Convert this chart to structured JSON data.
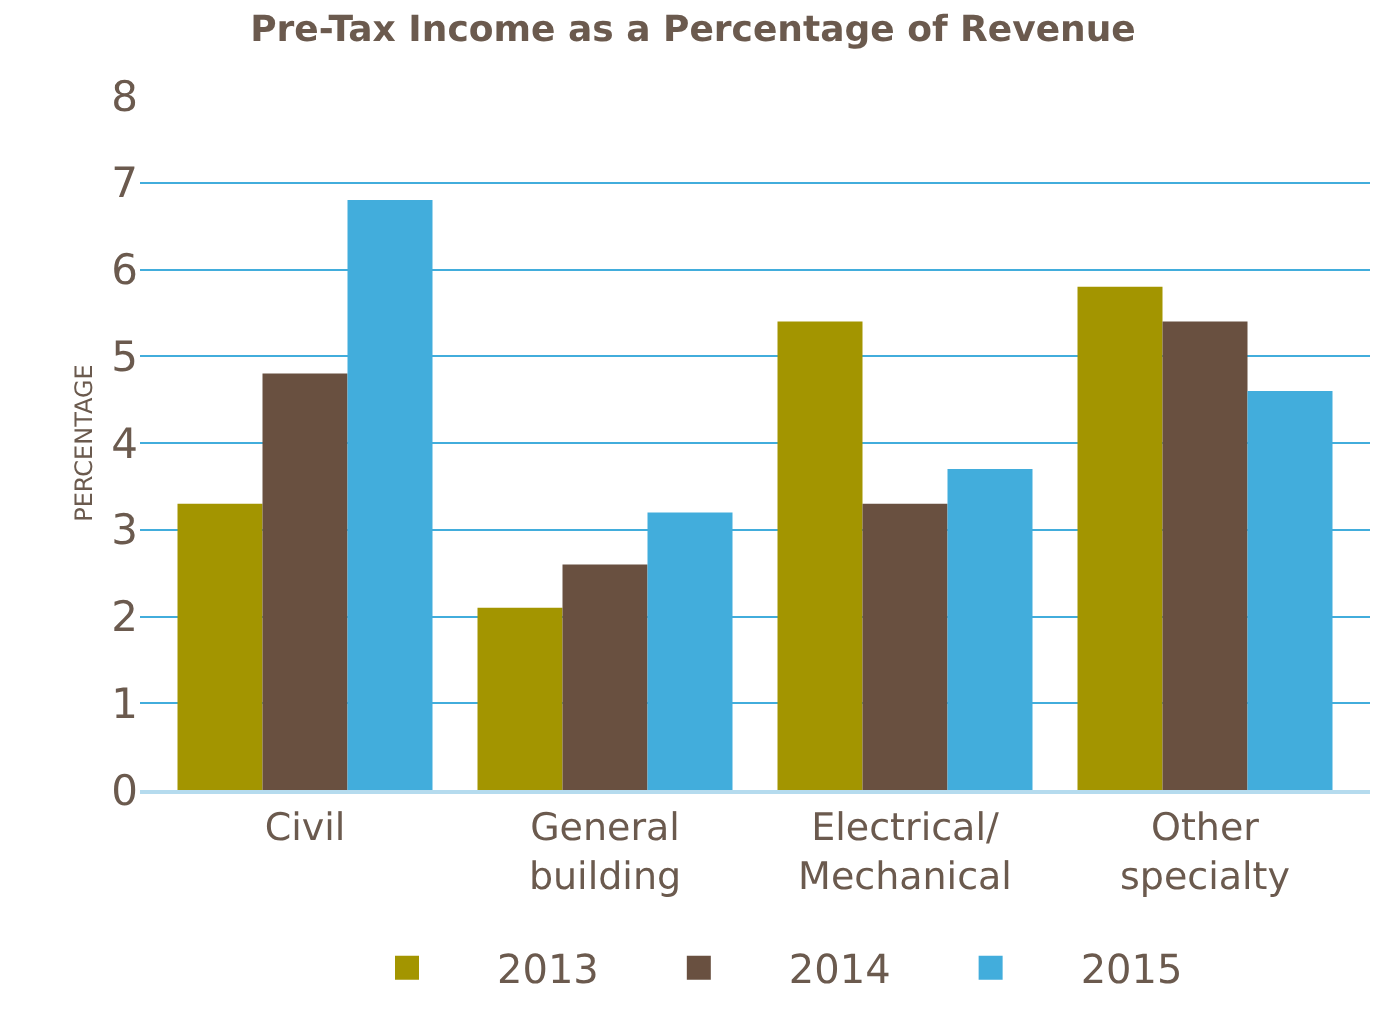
{
  "chart_data": {
    "type": "bar",
    "title": "Pre-Tax Income as a Percentage of Revenue",
    "ylabel": "PERCENTAGE",
    "categories": [
      "Civil",
      "General\nbuilding",
      "Electrical/\nMechanical",
      "Other\nspecialty"
    ],
    "series": [
      {
        "name": "2013",
        "color": "#a39500",
        "values": [
          3.3,
          2.1,
          5.4,
          5.8
        ]
      },
      {
        "name": "2014",
        "color": "#695040",
        "values": [
          4.8,
          2.6,
          3.3,
          5.4
        ]
      },
      {
        "name": "2015",
        "color": "#42addc",
        "values": [
          6.8,
          3.2,
          3.7,
          4.6
        ]
      }
    ],
    "ylim": [
      0,
      8
    ],
    "yticks": [
      0,
      1,
      2,
      3,
      4,
      5,
      6,
      7,
      8
    ],
    "grid": "y",
    "legend": "bottom"
  }
}
